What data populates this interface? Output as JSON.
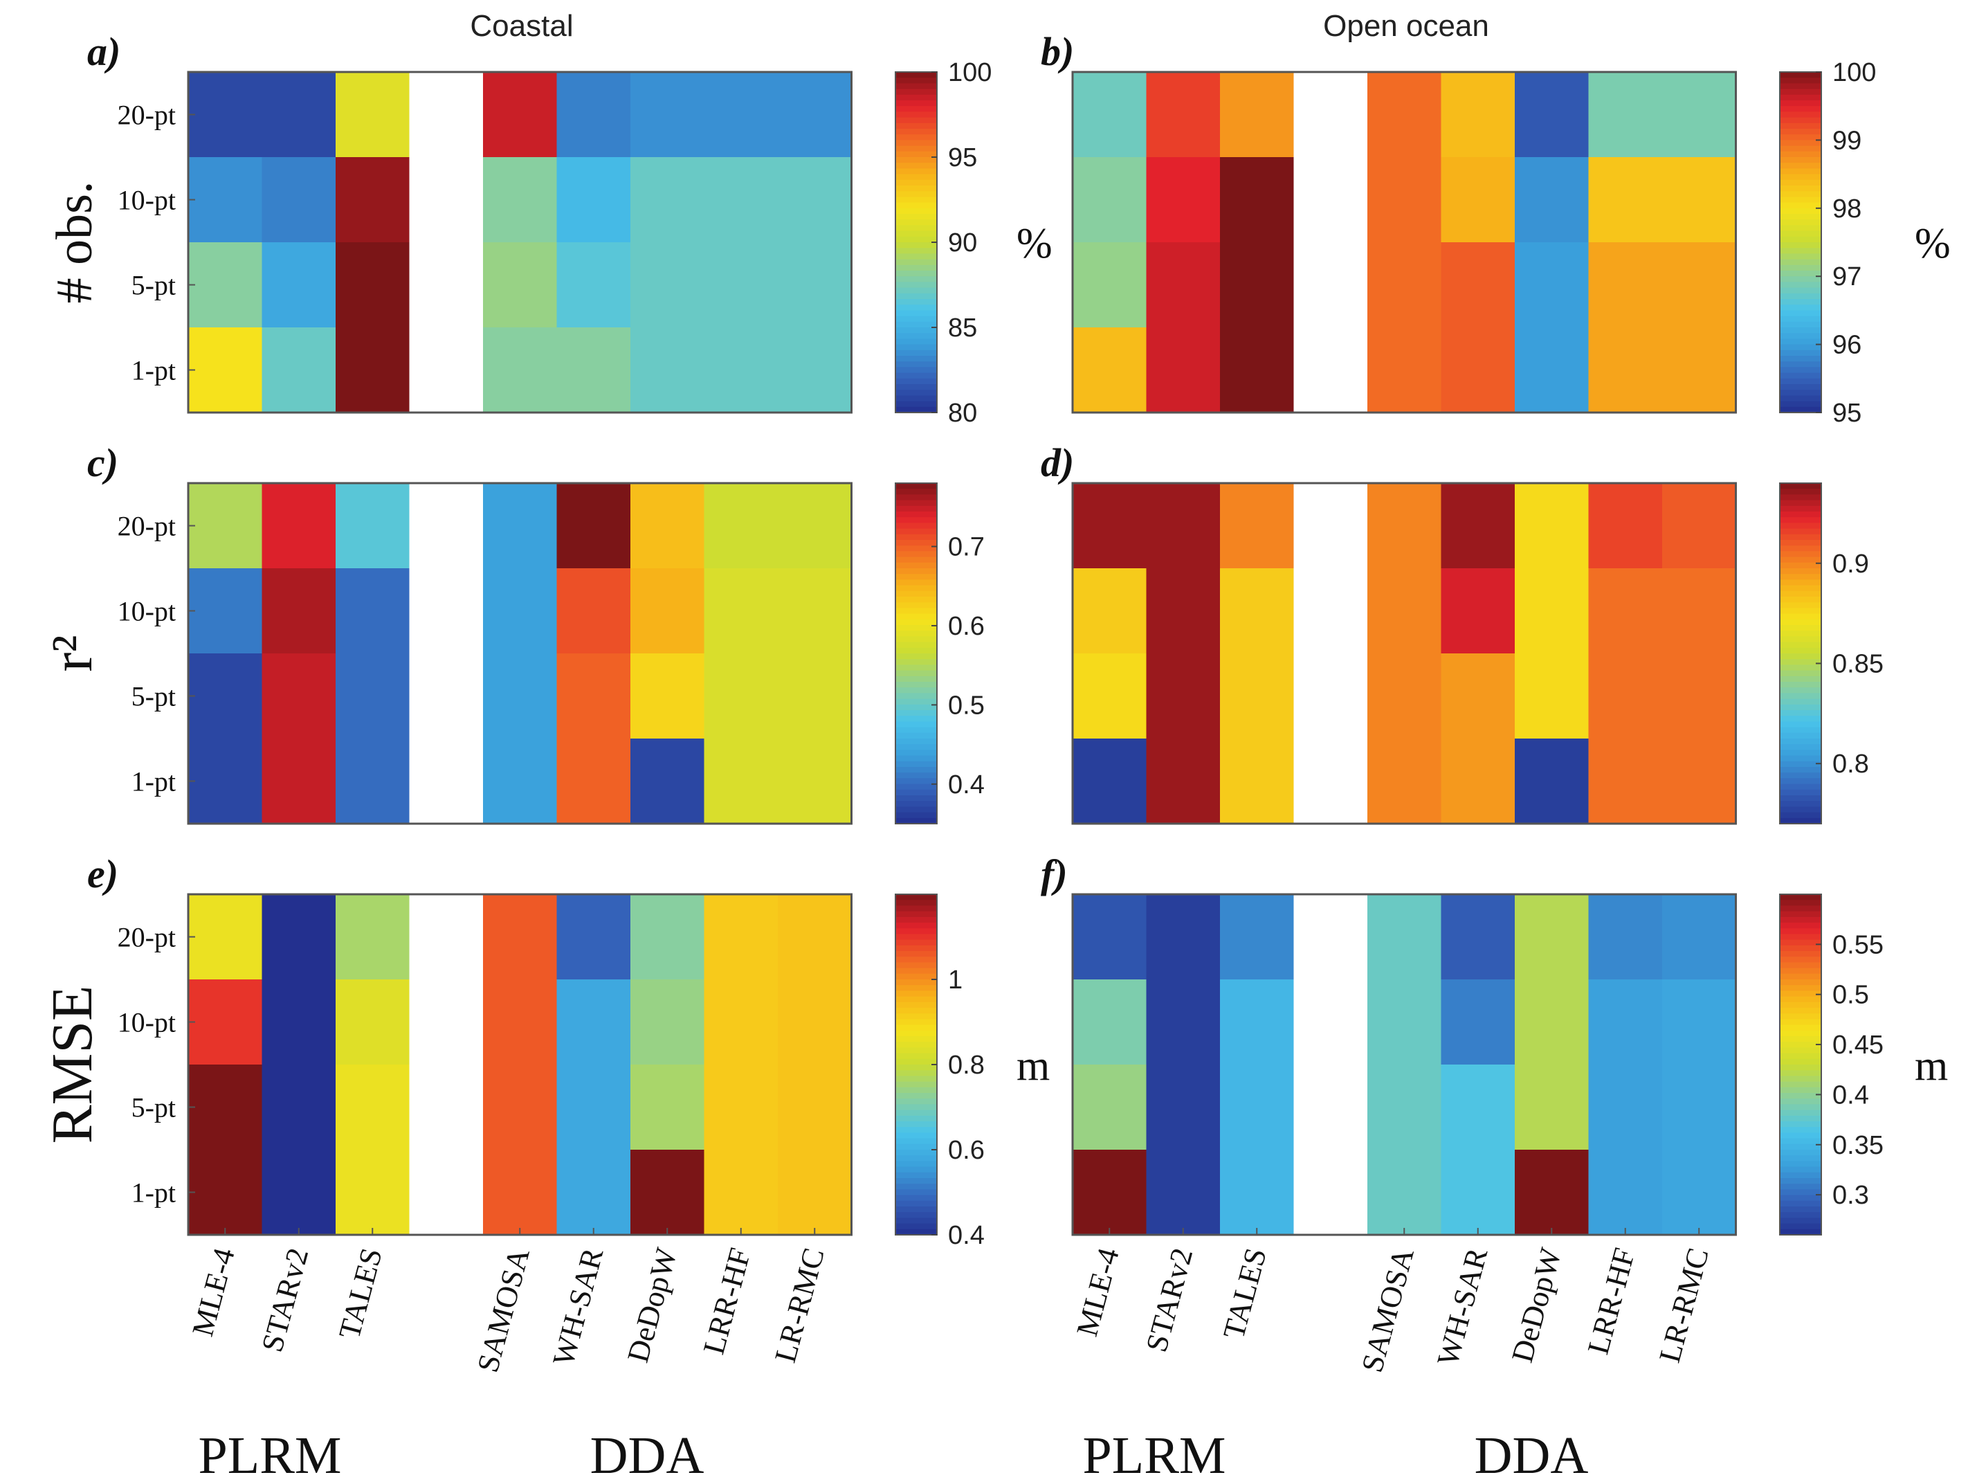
{
  "figure": {
    "column_titles": [
      "Coastal",
      "Open ocean"
    ],
    "row_labels": [
      "20-pt",
      "10-pt",
      "5-pt",
      "1-pt"
    ],
    "methods": [
      "MLE-4",
      "STARv2",
      "TALES",
      "",
      "SAMOSA",
      "WH-SAR",
      "DeDopW",
      "LRR-HF",
      "LR-RMC"
    ],
    "group_labels": [
      "PLRM",
      "DDA"
    ]
  },
  "chart_data": [
    {
      "type": "heatmap",
      "panel": "a)",
      "column": "Coastal",
      "ylabel": "# obs.",
      "unit": "%",
      "clim": [
        80,
        100
      ],
      "cticks": [
        80,
        85,
        90,
        95,
        100
      ],
      "tick_labels": [
        "80",
        "85",
        "90",
        "95",
        "100"
      ],
      "values": [
        [
          81,
          81,
          91,
          null,
          98.5,
          83,
          83.5,
          83.5,
          83.5
        ],
        [
          83.5,
          83,
          99.5,
          null,
          88,
          85.5,
          87,
          87,
          87
        ],
        [
          88,
          84.5,
          100,
          null,
          88.5,
          86.5,
          87,
          87,
          87
        ],
        [
          92,
          87,
          100,
          null,
          88,
          88,
          87,
          87,
          87
        ]
      ]
    },
    {
      "type": "heatmap",
      "panel": "b)",
      "column": "Open ocean",
      "ylabel": "",
      "unit": "%",
      "clim": [
        95,
        100
      ],
      "cticks": [
        95,
        96,
        97,
        98,
        99,
        100
      ],
      "tick_labels": [
        "95",
        "96",
        "97",
        "98",
        "99",
        "100"
      ],
      "values": [
        [
          96.8,
          99.3,
          98.7,
          null,
          99,
          98.4,
          95.4,
          96.9,
          96.9
        ],
        [
          97,
          99.5,
          100,
          null,
          99,
          98.5,
          95.9,
          98.3,
          98.3
        ],
        [
          97.1,
          99.6,
          100,
          null,
          99,
          99.1,
          96,
          98.6,
          98.6
        ],
        [
          98.4,
          99.6,
          100,
          null,
          99,
          99.1,
          96,
          98.6,
          98.6
        ]
      ]
    },
    {
      "type": "heatmap",
      "panel": "c)",
      "column": "Coastal",
      "ylabel": "r²",
      "unit": "",
      "clim": [
        0.35,
        0.78
      ],
      "cticks": [
        0.4,
        0.5,
        0.6,
        0.7
      ],
      "tick_labels": [
        "0.4",
        "0.5",
        "0.6",
        "0.7"
      ],
      "values": [
        [
          0.55,
          0.74,
          0.49,
          null,
          0.44,
          0.78,
          0.64,
          0.57,
          0.57
        ],
        [
          0.41,
          0.76,
          0.4,
          null,
          0.44,
          0.71,
          0.65,
          0.58,
          0.58
        ],
        [
          0.37,
          0.75,
          0.4,
          null,
          0.44,
          0.7,
          0.62,
          0.58,
          0.58
        ],
        [
          0.37,
          0.75,
          0.4,
          null,
          0.44,
          0.7,
          0.37,
          0.58,
          0.58
        ]
      ]
    },
    {
      "type": "heatmap",
      "panel": "d)",
      "column": "Open ocean",
      "ylabel": "",
      "unit": "",
      "clim": [
        0.77,
        0.94
      ],
      "cticks": [
        0.8,
        0.85,
        0.9
      ],
      "tick_labels": [
        "0.8",
        "0.85",
        "0.9"
      ],
      "values": [
        [
          0.935,
          0.935,
          0.9,
          null,
          0.9,
          0.935,
          0.875,
          0.915,
          0.91
        ],
        [
          0.88,
          0.935,
          0.88,
          null,
          0.9,
          0.925,
          0.875,
          0.905,
          0.905
        ],
        [
          0.875,
          0.935,
          0.88,
          null,
          0.9,
          0.895,
          0.875,
          0.905,
          0.905
        ],
        [
          0.775,
          0.935,
          0.88,
          null,
          0.9,
          0.895,
          0.775,
          0.905,
          0.905
        ]
      ]
    },
    {
      "type": "heatmap",
      "panel": "e)",
      "column": "Coastal",
      "ylabel": "RMSE",
      "unit": "m",
      "clim": [
        0.4,
        1.2
      ],
      "cticks": [
        0.4,
        0.6,
        0.8,
        1
      ],
      "tick_labels": [
        "0.4",
        "0.6",
        "0.8",
        "1"
      ],
      "values": [
        [
          0.86,
          0.4,
          0.76,
          null,
          1.06,
          0.48,
          0.72,
          0.92,
          0.93
        ],
        [
          1.1,
          0.4,
          0.84,
          null,
          1.06,
          0.58,
          0.74,
          0.92,
          0.93
        ],
        [
          1.2,
          0.4,
          0.86,
          null,
          1.06,
          0.58,
          0.76,
          0.92,
          0.93
        ],
        [
          1.2,
          0.4,
          0.86,
          null,
          1.06,
          0.58,
          1.2,
          0.92,
          0.93
        ]
      ]
    },
    {
      "type": "heatmap",
      "panel": "f)",
      "column": "Open ocean",
      "ylabel": "",
      "unit": "m",
      "clim": [
        0.26,
        0.6
      ],
      "cticks": [
        0.3,
        0.35,
        0.4,
        0.45,
        0.5,
        0.55
      ],
      "tick_labels": [
        "0.3",
        "0.35",
        "0.4",
        "0.45",
        "0.5",
        "0.55"
      ],
      "values": [
        [
          0.285,
          0.27,
          0.315,
          null,
          0.38,
          0.29,
          0.42,
          0.315,
          0.32
        ],
        [
          0.39,
          0.27,
          0.35,
          null,
          0.38,
          0.31,
          0.42,
          0.33,
          0.335
        ],
        [
          0.405,
          0.27,
          0.35,
          null,
          0.38,
          0.365,
          0.42,
          0.33,
          0.335
        ],
        [
          0.6,
          0.27,
          0.35,
          null,
          0.38,
          0.365,
          0.6,
          0.33,
          0.335
        ]
      ]
    }
  ],
  "colors": {
    "axis": "#333333",
    "background": "#ffffff",
    "colormap_jet": [
      "#23308f",
      "#3462b9",
      "#3a9fdb",
      "#49c3ea",
      "#88cfa0",
      "#c9dc34",
      "#f6e21c",
      "#f7b219",
      "#f26b24",
      "#e3222c",
      "#7b1517"
    ]
  }
}
